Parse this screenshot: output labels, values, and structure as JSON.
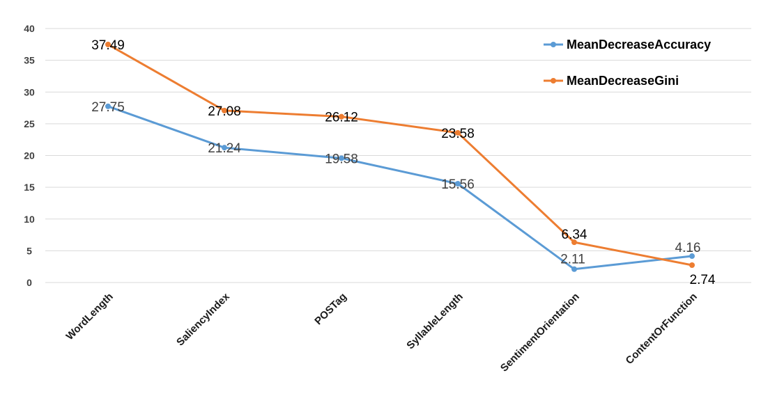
{
  "chart_data": {
    "type": "line",
    "categories": [
      "WordLength",
      "SaliencyIndex",
      "POSTag",
      "SyllableLength",
      "SentimentOrientation",
      "ContentOrFunction"
    ],
    "series": [
      {
        "name": "MeanDecreaseAccuracy",
        "values": [
          27.75,
          21.24,
          19.58,
          15.56,
          2.11,
          4.16
        ],
        "labels": [
          "27.75",
          "21.24",
          "19.58",
          "15.56",
          "2.11",
          "4.16"
        ],
        "color": "#5b9bd5",
        "label_color": "#404040"
      },
      {
        "name": "MeanDecreaseGini",
        "values": [
          37.49,
          27.08,
          26.12,
          23.58,
          6.34,
          2.74
        ],
        "labels": [
          "37.49",
          "27.08",
          "26.12",
          "23.58",
          "6.34",
          "2.74"
        ],
        "color": "#ed7d31",
        "label_color": "#000000"
      }
    ],
    "y_ticks": [
      "0",
      "5",
      "10",
      "15",
      "20",
      "25",
      "30",
      "35",
      "40"
    ],
    "ylim": [
      0,
      40
    ],
    "grid": true,
    "legend_position": "top-right",
    "gridline_color": "#d9d9d9"
  }
}
